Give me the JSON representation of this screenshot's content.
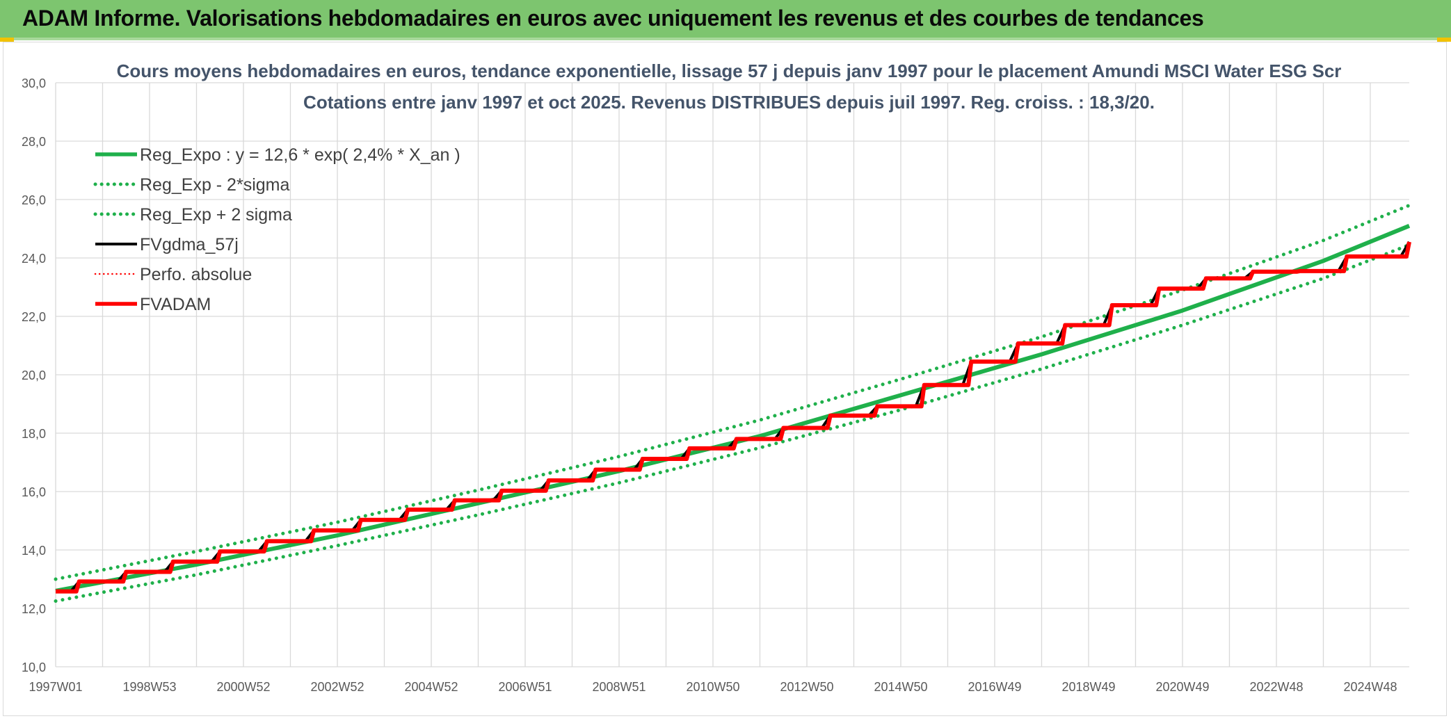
{
  "banner": {
    "title": "ADAM Informe. Valorisations hebdomadaires en euros avec uniquement les revenus et des courbes de tendances"
  },
  "colors": {
    "banner": "#7dc56f",
    "reg_expo": "#1fb04b",
    "black": "#000000",
    "red": "#ff0000",
    "accent": "#f2c200"
  },
  "chart_data": {
    "type": "line",
    "title": "Cours moyens hebdomadaires en euros, tendance exponentielle, lissage 57 j depuis janv 1997 pour le placement Amundi MSCI Water ESG Scr",
    "subtitle": "Cotations entre janv 1997 et oct 2025. Revenus DISTRIBUES depuis juil 1997. Reg. croiss. : 18,3/20.",
    "xlabel": "",
    "ylabel": "",
    "ylim": [
      10,
      30
    ],
    "y_ticks": [
      "10,0",
      "12,0",
      "14,0",
      "16,0",
      "18,0",
      "20,0",
      "22,0",
      "24,0",
      "26,0",
      "28,0",
      "30,0"
    ],
    "x_ticks": [
      "1997W01",
      "1998W53",
      "2000W52",
      "2002W52",
      "2004W52",
      "2006W51",
      "2008W51",
      "2010W50",
      "2012W50",
      "2014W50",
      "2016W49",
      "2018W49",
      "2020W49",
      "2022W48",
      "2024W48"
    ],
    "x_range": [
      1997.0,
      2025.83
    ],
    "grid": true,
    "legend_position": "top-left",
    "series": [
      {
        "name": "Reg_Expo : y = 12,6 * exp( 2,4% *  X_an )",
        "style": "solid-thick",
        "color": "#1fb04b",
        "x": [
          1997,
          2000,
          2003,
          2006,
          2009,
          2012,
          2015,
          2018,
          2021,
          2024,
          2025.83
        ],
        "y": [
          12.6,
          13.5,
          14.5,
          15.6,
          16.7,
          17.9,
          19.3,
          20.7,
          22.2,
          23.9,
          25.1
        ]
      },
      {
        "name": "Reg_Exp - 2*sigma",
        "style": "dotted",
        "color": "#1fb04b",
        "x": [
          1997,
          2000,
          2003,
          2006,
          2009,
          2012,
          2015,
          2018,
          2021,
          2024,
          2025.83
        ],
        "y": [
          12.25,
          13.15,
          14.15,
          15.2,
          16.3,
          17.5,
          18.8,
          20.2,
          21.7,
          23.3,
          24.45
        ]
      },
      {
        "name": "Reg_Exp + 2 sigma",
        "style": "dotted",
        "color": "#1fb04b",
        "x": [
          1997,
          2000,
          2003,
          2006,
          2009,
          2012,
          2015,
          2018,
          2021,
          2024,
          2025.83
        ],
        "y": [
          13.0,
          13.95,
          14.95,
          16.05,
          17.2,
          18.45,
          19.85,
          21.3,
          22.9,
          24.6,
          25.8
        ]
      },
      {
        "name": "FVgdma_57j",
        "style": "solid",
        "color": "#000000",
        "x": [
          1997.0,
          1997.5,
          1998.5,
          1999.5,
          2000.5,
          2001.5,
          2002.5,
          2003.5,
          2004.5,
          2005.5,
          2006.5,
          2007.5,
          2008.5,
          2009.5,
          2010.5,
          2011.5,
          2012.5,
          2013.5,
          2014.5,
          2015.5,
          2016.5,
          2017.5,
          2018.5,
          2019.5,
          2020.5,
          2021.5,
          2022.5,
          2023.5,
          2024.5,
          2025.83
        ],
        "y": [
          12.58,
          12.92,
          13.25,
          13.6,
          13.95,
          14.3,
          14.67,
          15.03,
          15.38,
          15.7,
          16.03,
          16.38,
          16.75,
          17.12,
          17.48,
          17.8,
          18.18,
          18.6,
          18.92,
          19.65,
          20.45,
          21.07,
          21.7,
          22.38,
          22.95,
          23.3,
          23.53,
          23.55,
          24.05,
          24.55
        ]
      },
      {
        "name": "Perfo. absolue",
        "style": "dotted",
        "color": "#ff0000",
        "x": [
          1997.0,
          2025.83
        ],
        "y": [
          12.58,
          24.55
        ]
      },
      {
        "name": "FVADAM",
        "style": "solid-thick",
        "color": "#ff0000",
        "x": [
          1997.0,
          1997.5,
          1998.5,
          1999.5,
          2000.5,
          2001.5,
          2002.5,
          2003.5,
          2004.5,
          2005.5,
          2006.5,
          2007.5,
          2008.5,
          2009.5,
          2010.5,
          2011.5,
          2012.5,
          2013.5,
          2014.5,
          2015.5,
          2016.5,
          2017.5,
          2018.5,
          2019.5,
          2020.5,
          2021.5,
          2022.5,
          2023.5,
          2024.5,
          2025.83
        ],
        "y": [
          12.58,
          12.92,
          13.25,
          13.6,
          13.95,
          14.3,
          14.67,
          15.03,
          15.38,
          15.7,
          16.03,
          16.38,
          16.75,
          17.12,
          17.48,
          17.8,
          18.18,
          18.6,
          18.92,
          19.65,
          20.45,
          21.07,
          21.7,
          22.38,
          22.95,
          23.3,
          23.53,
          23.55,
          24.05,
          24.55
        ]
      }
    ]
  }
}
